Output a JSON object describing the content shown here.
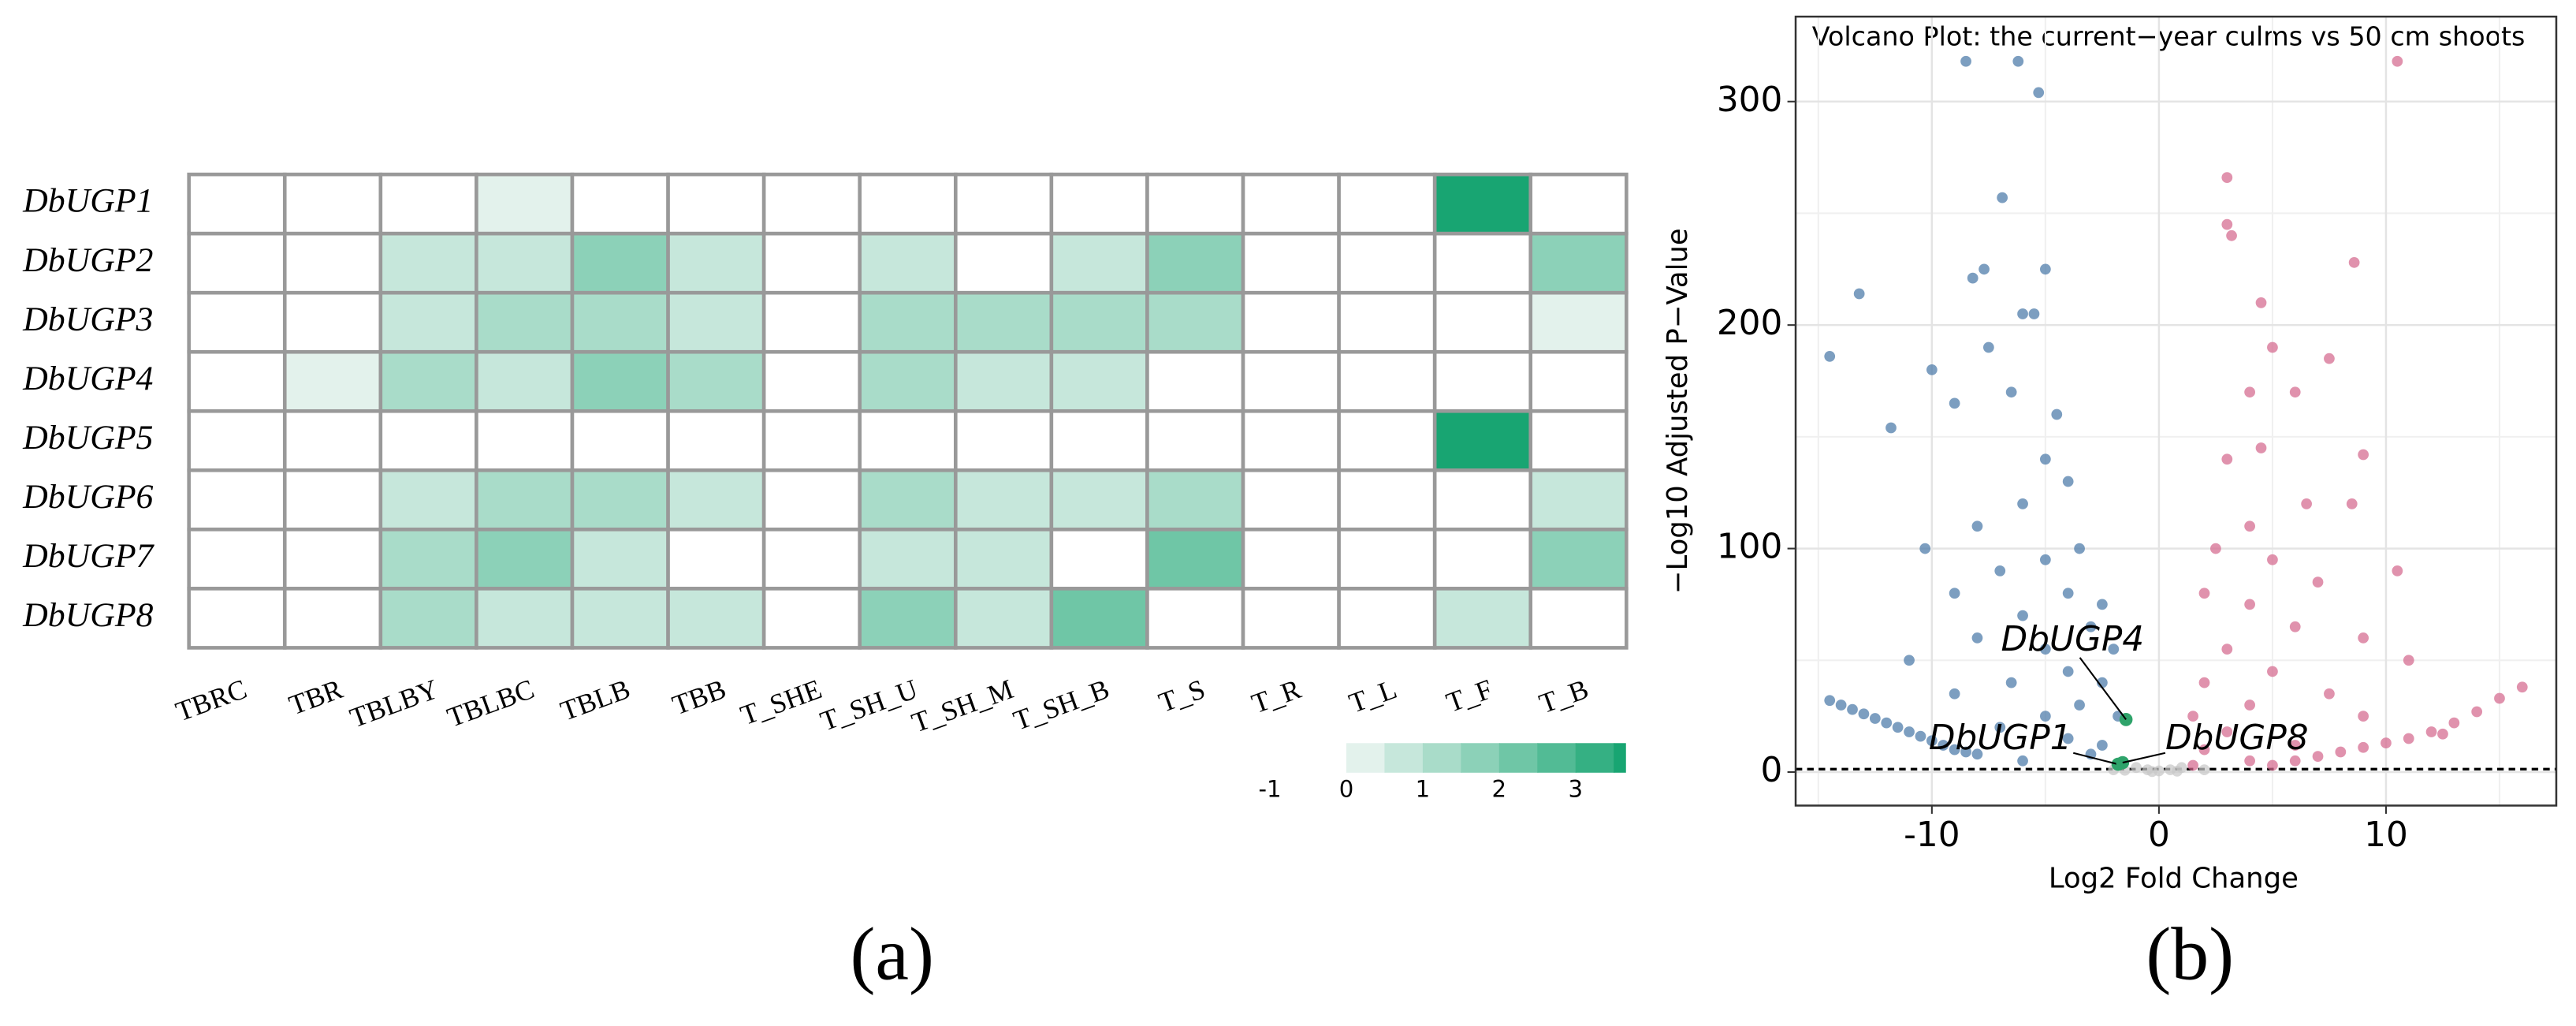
{
  "chart_data": [
    {
      "type": "heatmap",
      "panel_label": "(a)",
      "rows": [
        "DbUGP1",
        "DbUGP2",
        "DbUGP3",
        "DbUGP4",
        "DbUGP5",
        "DbUGP6",
        "DbUGP7",
        "DbUGP8"
      ],
      "columns": [
        "TBRC",
        "TBR",
        "TBLBY",
        "TBLBC",
        "TBLB",
        "TBB",
        "T_SHE",
        "T_SH_U",
        "T_SH_M",
        "T_SH_B",
        "T_S",
        "T_R",
        "T_L",
        "T_F",
        "T_B"
      ],
      "values": [
        [
          -1,
          -1,
          -1,
          0.3,
          -1,
          -1,
          -1,
          -1,
          -1,
          -1,
          -1,
          -1,
          -1,
          3.5,
          -1
        ],
        [
          -1,
          -1,
          0.5,
          0.9,
          1.8,
          0.7,
          -1,
          0.5,
          -1,
          0.5,
          1.8,
          -1,
          -1,
          -1,
          1.8
        ],
        [
          -1,
          -1,
          0.5,
          1.3,
          1.3,
          0.5,
          -1,
          1.2,
          1.3,
          1.2,
          1.3,
          -1,
          -1,
          -1,
          0.4
        ],
        [
          -1,
          0.4,
          1.3,
          0.9,
          1.8,
          1.3,
          -1,
          1.2,
          0.9,
          0.9,
          -1,
          -1,
          -1,
          -1,
          -1
        ],
        [
          -1,
          -1,
          -1,
          -1,
          -1,
          -1,
          -1,
          -1,
          -1,
          -1,
          -1,
          -1,
          -1,
          3.5,
          -1
        ],
        [
          -1,
          -1,
          0.5,
          1.3,
          1.3,
          0.5,
          -1,
          1.3,
          0.9,
          0.9,
          1.3,
          -1,
          -1,
          -1,
          0.5
        ],
        [
          -1,
          -1,
          1.3,
          1.8,
          0.5,
          -1,
          -1,
          0.5,
          0.5,
          -1,
          2.3,
          -1,
          -1,
          -1,
          1.8
        ],
        [
          -1,
          -1,
          1.3,
          0.5,
          0.5,
          0.9,
          -1,
          1.8,
          0.9,
          2.3,
          -1,
          -1,
          -1,
          0.9,
          -1
        ]
      ],
      "colors": [
        "#e3f2ec",
        "#18a572"
      ],
      "colorbar_lim": [
        -1,
        3.65
      ],
      "colorbar_ticks": [
        -1,
        0,
        1,
        2,
        3
      ]
    },
    {
      "type": "scatter",
      "panel_label": "(b)",
      "title": "Volcano Plot: the current−year culms vs 50 cm shoots",
      "x_label": "Log2 Fold Change",
      "y_label": "−Log10 Adjusted P−Value",
      "xlim": [
        -16,
        17.5
      ],
      "ylim": [
        -15,
        338
      ],
      "xticks": [
        -10,
        0,
        10
      ],
      "yticks": [
        0,
        100,
        200,
        300
      ],
      "grid": true,
      "hline": 1.3,
      "series": [
        {
          "color": "#c8c8c8",
          "x": [
            -1,
            -0.5,
            0,
            0.5,
            1,
            -2,
            2,
            -0.3,
            0.8,
            -1.5
          ],
          "y": [
            2,
            1,
            0.5,
            1,
            2,
            1,
            1,
            0.2,
            0.4,
            0.8
          ]
        },
        {
          "color": "#4a78a8",
          "x": [
            -14.5,
            -14,
            -13.5,
            -13,
            -12.5,
            -12,
            -11.5,
            -11,
            -10.5,
            -10,
            -9.5,
            -9,
            -8.5,
            -8,
            -13.2,
            -14.5,
            -11.8,
            -5.3,
            -6.9,
            -5,
            -7.7,
            -8.2,
            -5.5,
            -6,
            -7.5,
            -10,
            -9,
            -6.5,
            -4.5,
            -5,
            -4,
            -6,
            -8,
            -10.3,
            -3.5,
            -5,
            -7,
            -9,
            -4,
            -2.5,
            -6,
            -3,
            -8,
            -5,
            -2,
            -11,
            -4,
            -6.5,
            -2.5,
            -9,
            -3.5,
            -5,
            -1.8,
            -7,
            -4,
            -2.5,
            -3,
            -6,
            -8.5,
            -6.2
          ],
          "y": [
            32,
            30,
            28,
            26,
            24,
            22,
            20,
            18,
            16,
            14,
            12,
            10,
            9,
            8,
            214,
            186,
            154,
            304,
            257,
            225,
            225,
            221,
            205,
            205,
            190,
            180,
            165,
            170,
            160,
            140,
            130,
            120,
            110,
            100,
            100,
            95,
            90,
            80,
            80,
            75,
            70,
            65,
            60,
            55,
            55,
            50,
            45,
            40,
            40,
            35,
            30,
            25,
            25,
            20,
            15,
            12,
            8,
            5,
            318,
            318
          ]
        },
        {
          "color": "#d4688d",
          "x": [
            5,
            6,
            7,
            8,
            9,
            10,
            11,
            12,
            13,
            14,
            15,
            16,
            10.5,
            3,
            3,
            3.2,
            8.6,
            4.5,
            5,
            7.5,
            4,
            6,
            4.5,
            3,
            9,
            6.5,
            8.5,
            4,
            2.5,
            5,
            10.5,
            7,
            2,
            4,
            6,
            9,
            3,
            11,
            5,
            2,
            7.5,
            4,
            1.5,
            9,
            3,
            12.5,
            6,
            2,
            4,
            1.5
          ],
          "y": [
            3,
            5,
            7,
            9,
            11,
            13,
            15,
            18,
            22,
            27,
            33,
            38,
            318,
            266,
            245,
            240,
            228,
            210,
            190,
            185,
            170,
            170,
            145,
            140,
            142,
            120,
            120,
            110,
            100,
            95,
            90,
            85,
            80,
            75,
            65,
            60,
            55,
            50,
            45,
            40,
            35,
            30,
            25,
            25,
            18,
            17,
            12,
            10,
            5,
            3
          ]
        },
        {
          "color": "#2ea36a",
          "names": [
            "DbUGP4",
            "DbUGP1",
            "DbUGP8"
          ],
          "x": [
            -1.45,
            -1.8,
            -1.6
          ],
          "y": [
            23.5,
            3.5,
            4.2
          ]
        }
      ]
    }
  ]
}
